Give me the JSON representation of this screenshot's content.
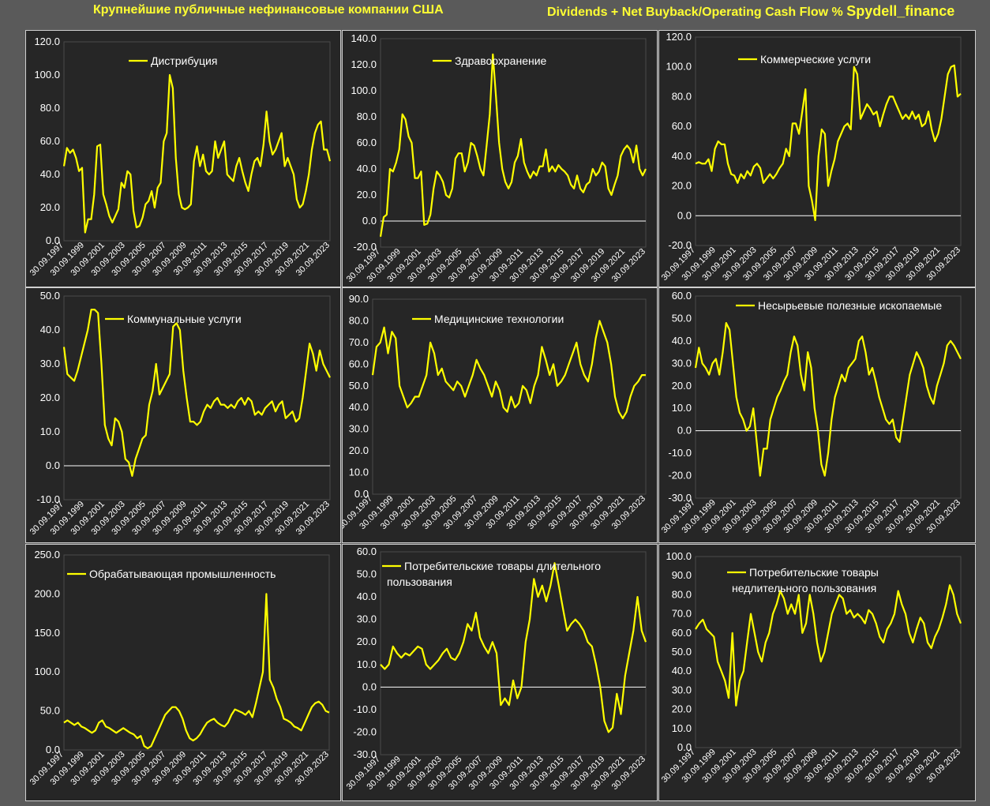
{
  "header": {
    "title_left": "Крупнейшие публичные нефинансовые компании США",
    "title_right": "Dividends + Net Buyback/Operating Cash Flow %",
    "brand": "Spydell_finance"
  },
  "colors": {
    "line": "#ffff00",
    "text": "#ffffff",
    "background": "#262626",
    "page": "#5a5a5a",
    "header_text": "#ffff33"
  },
  "x_ticks": [
    "30.09.1997",
    "30.09.1999",
    "30.09.2001",
    "30.09.2003",
    "30.09.2005",
    "30.09.2007",
    "30.09.2009",
    "30.09.2011",
    "30.09.2013",
    "30.09.2015",
    "30.09.2017",
    "30.09.2019",
    "30.09.2021",
    "30.09.2023"
  ],
  "chart_data": [
    {
      "type": "line",
      "legend": [
        "Дистрибуция"
      ],
      "ylim": [
        0,
        120
      ],
      "yticks": [
        0,
        20,
        40,
        60,
        80,
        100,
        120
      ],
      "series": [
        {
          "name": "Дистрибуция",
          "start_year": 1997.75,
          "end_year": 2023.75,
          "values": [
            45,
            56,
            53,
            55,
            50,
            42,
            44,
            5,
            13,
            13,
            28,
            57,
            58,
            28,
            22,
            15,
            11,
            15,
            19,
            35,
            32,
            42,
            40,
            18,
            8,
            9,
            14,
            22,
            24,
            30,
            20,
            32,
            35,
            60,
            65,
            100,
            92,
            50,
            28,
            20,
            19,
            20,
            22,
            48,
            57,
            45,
            52,
            42,
            40,
            42,
            60,
            50,
            55,
            60,
            40,
            38,
            36,
            45,
            50,
            42,
            35,
            30,
            40,
            48,
            50,
            45,
            58,
            78,
            60,
            52,
            55,
            60,
            65,
            45,
            50,
            45,
            40,
            25,
            20,
            22,
            30,
            40,
            55,
            65,
            70,
            72,
            55,
            55,
            48
          ]
        }
      ]
    },
    {
      "type": "line",
      "legend": [
        "Здравоохранение"
      ],
      "ylim": [
        -20,
        140
      ],
      "yticks": [
        -20,
        0,
        20,
        40,
        60,
        80,
        100,
        120,
        140
      ],
      "series": [
        {
          "name": "Здравоохранение",
          "start_year": 1997.75,
          "end_year": 2023.75,
          "values": [
            -12,
            3,
            5,
            40,
            38,
            45,
            55,
            82,
            78,
            65,
            60,
            33,
            33,
            38,
            -3,
            -2,
            5,
            25,
            38,
            35,
            30,
            20,
            18,
            25,
            48,
            52,
            52,
            38,
            45,
            60,
            58,
            50,
            40,
            35,
            58,
            82,
            128,
            95,
            60,
            40,
            30,
            25,
            30,
            45,
            50,
            63,
            45,
            38,
            33,
            38,
            35,
            42,
            42,
            55,
            38,
            42,
            38,
            43,
            40,
            38,
            35,
            28,
            25,
            35,
            25,
            22,
            28,
            30,
            40,
            35,
            38,
            45,
            42,
            25,
            20,
            28,
            35,
            50,
            55,
            58,
            55,
            45,
            58,
            40,
            35,
            40
          ]
        }
      ]
    },
    {
      "type": "line",
      "legend": [
        "Коммерческие услуги"
      ],
      "ylim": [
        -20,
        120
      ],
      "yticks": [
        -20,
        0,
        20,
        40,
        60,
        80,
        100,
        120
      ],
      "series": [
        {
          "name": "Коммерческие услуги",
          "start_year": 1997.75,
          "end_year": 2023.75,
          "values": [
            35,
            36,
            35,
            35,
            38,
            30,
            45,
            50,
            48,
            48,
            35,
            28,
            27,
            22,
            28,
            25,
            30,
            27,
            33,
            35,
            32,
            22,
            25,
            28,
            25,
            28,
            32,
            35,
            45,
            40,
            62,
            62,
            55,
            70,
            85,
            20,
            10,
            -3,
            40,
            58,
            55,
            20,
            30,
            38,
            50,
            55,
            60,
            62,
            58,
            100,
            95,
            65,
            70,
            75,
            72,
            68,
            70,
            60,
            68,
            75,
            80,
            80,
            75,
            70,
            65,
            68,
            65,
            70,
            65,
            68,
            60,
            62,
            70,
            58,
            50,
            55,
            65,
            80,
            95,
            100,
            101,
            80,
            82
          ]
        }
      ]
    },
    {
      "type": "line",
      "legend": [
        "Коммунальные услуги"
      ],
      "ylim": [
        -10,
        50
      ],
      "yticks": [
        -10,
        0,
        10,
        20,
        30,
        40,
        50
      ],
      "series": [
        {
          "name": "Коммунальные услуги",
          "start_year": 1997.75,
          "end_year": 2023.75,
          "values": [
            35,
            27,
            26,
            25,
            28,
            32,
            36,
            40,
            46,
            46,
            45,
            30,
            12,
            8,
            6,
            14,
            13,
            10,
            2,
            1,
            -3,
            2,
            5,
            8,
            9,
            18,
            22,
            30,
            21,
            23,
            25,
            27,
            41,
            42,
            40,
            28,
            20,
            13,
            13,
            12,
            13,
            16,
            18,
            17,
            19,
            20,
            18,
            18,
            17,
            18,
            17,
            19,
            20,
            18,
            20,
            19,
            15,
            16,
            15,
            17,
            18,
            19,
            16,
            18,
            19,
            14,
            15,
            16,
            13,
            14,
            20,
            28,
            36,
            33,
            28,
            34,
            30,
            28,
            26
          ]
        }
      ]
    },
    {
      "type": "line",
      "legend": [
        "Медицинские технологии"
      ],
      "ylim": [
        0,
        90
      ],
      "yticks": [
        0,
        10,
        20,
        30,
        40,
        50,
        60,
        70,
        80,
        90
      ],
      "series": [
        {
          "name": "Медицинские технологии",
          "start_year": 1997.75,
          "end_year": 2023.75,
          "values": [
            55,
            68,
            70,
            77,
            65,
            75,
            72,
            50,
            45,
            40,
            42,
            45,
            45,
            50,
            55,
            70,
            65,
            55,
            58,
            52,
            50,
            48,
            52,
            50,
            45,
            50,
            55,
            62,
            58,
            55,
            50,
            45,
            52,
            48,
            40,
            38,
            45,
            40,
            42,
            50,
            48,
            42,
            50,
            55,
            68,
            62,
            55,
            60,
            50,
            52,
            55,
            60,
            65,
            70,
            60,
            55,
            52,
            60,
            72,
            80,
            75,
            70,
            60,
            45,
            38,
            35,
            38,
            45,
            50,
            52,
            55,
            55
          ]
        }
      ]
    },
    {
      "type": "line",
      "legend": [
        "Несырьевые полезные ископаемые"
      ],
      "ylim": [
        -30,
        60
      ],
      "yticks": [
        -30,
        -20,
        -10,
        0,
        10,
        20,
        30,
        40,
        50,
        60
      ],
      "series": [
        {
          "name": "Несырьевые полезные ископаемые",
          "start_year": 1997.75,
          "end_year": 2023.75,
          "values": [
            28,
            37,
            30,
            28,
            25,
            30,
            32,
            25,
            35,
            48,
            45,
            30,
            15,
            8,
            5,
            0,
            2,
            10,
            -5,
            -20,
            -8,
            -8,
            5,
            10,
            15,
            18,
            22,
            25,
            35,
            42,
            38,
            25,
            18,
            35,
            28,
            10,
            0,
            -15,
            -20,
            -10,
            5,
            15,
            20,
            25,
            22,
            28,
            30,
            32,
            40,
            42,
            35,
            25,
            28,
            22,
            15,
            10,
            5,
            3,
            5,
            -3,
            -5,
            5,
            15,
            25,
            30,
            35,
            32,
            28,
            20,
            15,
            12,
            20,
            25,
            30,
            38,
            40,
            38,
            35,
            32
          ]
        }
      ]
    },
    {
      "type": "line",
      "legend": [
        "Обрабатывающая промышленность"
      ],
      "ylim": [
        0,
        250
      ],
      "yticks": [
        0,
        50,
        100,
        150,
        200,
        250
      ],
      "series": [
        {
          "name": "Обрабатывающая промышленность",
          "start_year": 1997.75,
          "end_year": 2023.75,
          "values": [
            35,
            38,
            35,
            32,
            35,
            30,
            28,
            25,
            22,
            25,
            35,
            38,
            30,
            28,
            25,
            22,
            25,
            28,
            25,
            22,
            20,
            15,
            18,
            5,
            2,
            5,
            15,
            25,
            35,
            45,
            50,
            55,
            55,
            50,
            40,
            25,
            15,
            12,
            15,
            20,
            28,
            35,
            38,
            40,
            35,
            32,
            30,
            35,
            45,
            52,
            50,
            48,
            45,
            50,
            42,
            60,
            80,
            100,
            200,
            90,
            80,
            65,
            55,
            40,
            38,
            35,
            30,
            28,
            25,
            35,
            45,
            55,
            60,
            62,
            58,
            50,
            48
          ]
        }
      ]
    },
    {
      "type": "line",
      "legend": [
        "Потребительские товары длительного",
        "пользования"
      ],
      "ylim": [
        -30,
        60
      ],
      "yticks": [
        -30,
        -20,
        -10,
        0,
        10,
        20,
        30,
        40,
        50,
        60
      ],
      "series": [
        {
          "name": "Потребительские товары длительного пользования",
          "start_year": 1997.75,
          "end_year": 2023.75,
          "values": [
            10,
            8,
            10,
            18,
            15,
            13,
            15,
            14,
            16,
            18,
            17,
            10,
            8,
            10,
            12,
            15,
            17,
            13,
            12,
            15,
            20,
            28,
            25,
            33,
            22,
            18,
            15,
            20,
            15,
            -8,
            -5,
            -8,
            3,
            -5,
            0,
            20,
            30,
            48,
            40,
            45,
            38,
            45,
            55,
            45,
            35,
            25,
            28,
            30,
            28,
            25,
            20,
            18,
            10,
            0,
            -15,
            -20,
            -18,
            -3,
            -12,
            5,
            15,
            25,
            40,
            25,
            20
          ]
        }
      ]
    },
    {
      "type": "line",
      "legend": [
        "Потребительские товары",
        "недлительного пользования"
      ],
      "ylim": [
        0,
        100
      ],
      "yticks": [
        0,
        10,
        20,
        30,
        40,
        50,
        60,
        70,
        80,
        90,
        100
      ],
      "series": [
        {
          "name": "Потребительские товары недлительного пользования",
          "start_year": 1997.75,
          "end_year": 2023.75,
          "values": [
            62,
            65,
            67,
            62,
            60,
            58,
            45,
            40,
            35,
            26,
            60,
            22,
            35,
            40,
            55,
            70,
            60,
            50,
            45,
            55,
            60,
            70,
            75,
            82,
            78,
            70,
            75,
            70,
            80,
            60,
            65,
            80,
            70,
            55,
            45,
            50,
            60,
            70,
            75,
            80,
            78,
            70,
            72,
            68,
            70,
            68,
            65,
            72,
            70,
            65,
            58,
            55,
            62,
            65,
            70,
            82,
            75,
            70,
            60,
            55,
            62,
            68,
            65,
            55,
            52,
            58,
            62,
            68,
            75,
            85,
            80,
            70,
            65
          ]
        }
      ]
    }
  ]
}
